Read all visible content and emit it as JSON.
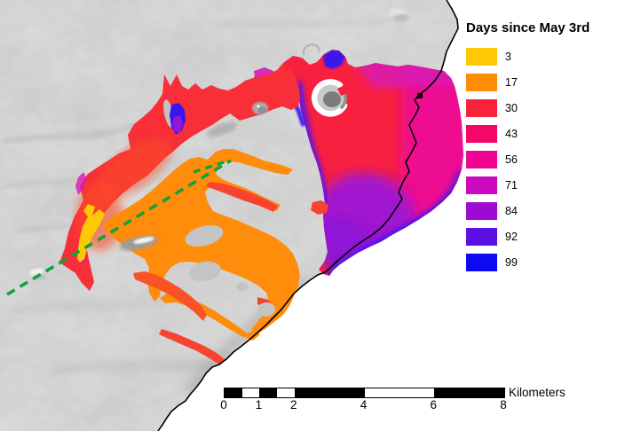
{
  "legend": {
    "title": "Days since May 3rd",
    "items": [
      {
        "label": "3",
        "color": "#FFC805"
      },
      {
        "label": "17",
        "color": "#FF8C05"
      },
      {
        "label": "30",
        "color": "#F8233A"
      },
      {
        "label": "43",
        "color": "#F50768"
      },
      {
        "label": "56",
        "color": "#EF0591"
      },
      {
        "label": "71",
        "color": "#C908BF"
      },
      {
        "label": "84",
        "color": "#9D0AD1"
      },
      {
        "label": "92",
        "color": "#5C0FE5"
      },
      {
        "label": "99",
        "color": "#0D0AF2"
      }
    ]
  },
  "scale_bar": {
    "unit_label": "Kilometers",
    "max_km": 8,
    "ticks": [
      {
        "km": 0,
        "label": "0"
      },
      {
        "km": 1,
        "label": "1"
      },
      {
        "km": 2,
        "label": "2"
      },
      {
        "km": 4,
        "label": "4"
      },
      {
        "km": 6,
        "label": "6"
      },
      {
        "km": 8,
        "label": "8"
      }
    ],
    "segments": [
      {
        "from_km": 0,
        "to_km": 0.5,
        "color": "#000000"
      },
      {
        "from_km": 0.5,
        "to_km": 1,
        "color": "#FFFFFF"
      },
      {
        "from_km": 1,
        "to_km": 1.5,
        "color": "#000000"
      },
      {
        "from_km": 1.5,
        "to_km": 2,
        "color": "#FFFFFF"
      },
      {
        "from_km": 2,
        "to_km": 4,
        "color": "#000000"
      },
      {
        "from_km": 4,
        "to_km": 6,
        "color": "#FFFFFF"
      },
      {
        "from_km": 6,
        "to_km": 8,
        "color": "#000000"
      }
    ]
  },
  "map": {
    "ocean_color": "#FFFFFF",
    "hillshade_color": "#C3C3C3",
    "coastline_color": "#000000",
    "fissure_line": {
      "color": "#12A23C",
      "style": "dashed"
    },
    "station_marker_color": "#000000"
  }
}
